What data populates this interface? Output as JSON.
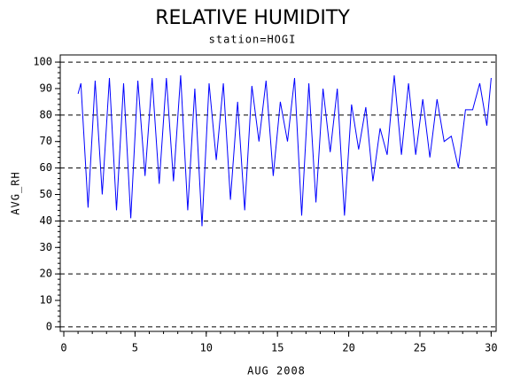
{
  "chart_data": {
    "type": "line",
    "title": "RELATIVE HUMIDITY",
    "subtitle": "station=HOGI",
    "x_label": "AUG 2008",
    "y_label": "AVG_RH",
    "x": [
      1.0,
      1.2,
      1.7,
      2.2,
      2.7,
      3.2,
      3.7,
      4.2,
      4.7,
      5.2,
      5.7,
      6.2,
      6.7,
      7.2,
      7.7,
      8.2,
      8.7,
      9.2,
      9.7,
      10.2,
      10.7,
      11.2,
      11.7,
      12.2,
      12.7,
      13.2,
      13.7,
      14.2,
      14.7,
      15.2,
      15.7,
      16.2,
      16.7,
      17.2,
      17.7,
      18.2,
      18.7,
      19.2,
      19.7,
      20.2,
      20.7,
      21.2,
      21.7,
      22.2,
      22.7,
      23.2,
      23.7,
      24.2,
      24.7,
      25.2,
      25.7,
      26.2,
      26.7,
      27.2,
      27.7,
      28.2,
      28.7,
      29.2,
      29.7,
      30.0
    ],
    "series": [
      {
        "name": "AVG_RH",
        "color": "#0000ff",
        "values": [
          88,
          92,
          45,
          93,
          50,
          94,
          44,
          92,
          41,
          93,
          57,
          94,
          54,
          94,
          55,
          95,
          44,
          90,
          38,
          92,
          63,
          92,
          48,
          85,
          44,
          91,
          70,
          93,
          57,
          85,
          70,
          94,
          42,
          92,
          47,
          90,
          66,
          90,
          42,
          84,
          67,
          83,
          55,
          75,
          65,
          95,
          65,
          92,
          65,
          86,
          64,
          86,
          70,
          72,
          60,
          82,
          82,
          92,
          76,
          94
        ]
      }
    ],
    "xlim": [
      -0.25,
      30.35
    ],
    "ylim": [
      -1.7,
      102.7
    ],
    "xticks": [
      0,
      5,
      10,
      15,
      20,
      25,
      30
    ],
    "yticks": [
      0,
      10,
      20,
      30,
      40,
      50,
      60,
      70,
      80,
      90,
      100
    ],
    "grid": true
  }
}
